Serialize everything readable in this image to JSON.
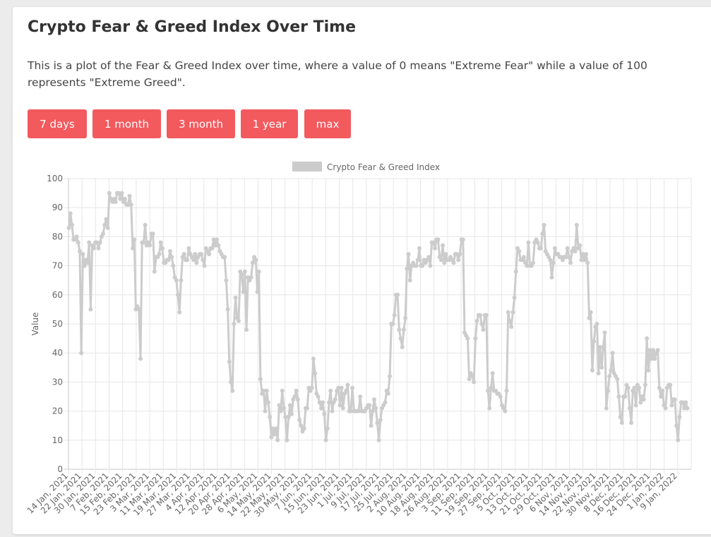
{
  "header": {
    "title": "Crypto Fear & Greed Index Over Time",
    "description": "This is a plot of the Fear & Greed Index over time, where a value of 0 means \"Extreme Fear\" while a value of 100 represents \"Extreme Greed\"."
  },
  "range_buttons": [
    "7 days",
    "1 month",
    "3 month",
    "1 year",
    "max"
  ],
  "colors": {
    "accent": "#f25a5e",
    "series": "#cccccc",
    "grid": "#e6e6e6"
  },
  "chart_data": {
    "type": "line",
    "title": "",
    "legend": {
      "label": "Crypto Fear & Greed Index",
      "position": "top"
    },
    "xlabel": "",
    "ylabel": "Value",
    "ylim": [
      0,
      100
    ],
    "yticks": [
      0,
      10,
      20,
      30,
      40,
      50,
      60,
      70,
      80,
      90,
      100
    ],
    "grid": true,
    "x_tick_labels": [
      "14 Jan, 2021",
      "22 Jan, 2021",
      "30 Jan, 2021",
      "7 Feb, 2021",
      "15 Feb, 2021",
      "23 Feb, 2021",
      "3 Mar, 2021",
      "11 Mar, 2021",
      "19 Mar, 2021",
      "27 Mar, 2021",
      "4 Apr, 2021",
      "12 Apr, 2021",
      "20 Apr, 2021",
      "28 Apr, 2021",
      "6 May, 2021",
      "14 May, 2021",
      "22 May, 2021",
      "30 May, 2021",
      "7 Jun, 2021",
      "15 Jun, 2021",
      "23 Jun, 2021",
      "1 Jul, 2021",
      "9 Jul, 2021",
      "17 Jul, 2021",
      "25 Jul, 2021",
      "2 Aug, 2021",
      "10 Aug, 2021",
      "18 Aug, 2021",
      "26 Aug, 2021",
      "3 Sep, 2021",
      "11 Sep, 2021",
      "19 Sep, 2021",
      "27 Sep, 2021",
      "5 Oct, 2021",
      "13 Oct, 2021",
      "21 Oct, 2021",
      "29 Oct, 2021",
      "6 Nov, 2021",
      "14 Nov, 2021",
      "22 Nov, 2021",
      "30 Nov, 2021",
      "8 Dec, 2021",
      "16 Dec, 2021",
      "24 Dec, 2021",
      "1 Jan, 2022",
      "9 Jan, 2022"
    ],
    "series": [
      {
        "name": "Crypto Fear & Greed Index",
        "values": [
          83,
          88,
          84,
          79,
          79,
          80,
          78,
          75,
          40,
          74,
          70,
          72,
          71,
          78,
          55,
          77,
          76,
          78,
          78,
          76,
          78,
          80,
          81,
          84,
          86,
          83,
          95,
          93,
          92,
          93,
          92,
          95,
          95,
          93,
          95,
          92,
          93,
          91,
          91,
          94,
          91,
          76,
          79,
          55,
          56,
          55,
          38,
          78,
          78,
          84,
          77,
          78,
          77,
          81,
          81,
          68,
          73,
          73,
          74,
          78,
          76,
          71,
          71,
          72,
          72,
          75,
          73,
          70,
          66,
          65,
          60,
          54,
          65,
          73,
          74,
          72,
          72,
          76,
          74,
          73,
          72,
          74,
          71,
          73,
          74,
          74,
          72,
          70,
          76,
          75,
          74,
          76,
          76,
          79,
          77,
          79,
          77,
          75,
          74,
          73,
          73,
          65,
          55,
          37,
          30,
          27,
          50,
          59,
          52,
          51,
          68,
          67,
          61,
          68,
          48,
          66,
          65,
          66,
          71,
          73,
          72,
          61,
          68,
          31,
          26,
          27,
          20,
          27,
          23,
          18,
          11,
          14,
          12,
          14,
          10,
          22,
          20,
          27,
          21,
          18,
          10,
          18,
          22,
          19,
          24,
          25,
          27,
          24,
          17,
          15,
          13,
          14,
          21,
          21,
          28,
          27,
          28,
          38,
          33,
          26,
          25,
          23,
          21,
          23,
          19,
          10,
          14,
          23,
          27,
          20,
          23,
          24,
          27,
          28,
          22,
          28,
          21,
          26,
          27,
          29,
          20,
          20,
          28,
          20,
          20,
          20,
          20,
          25,
          20,
          20,
          20,
          21,
          22,
          22,
          15,
          20,
          24,
          21,
          16,
          10,
          17,
          21,
          22,
          23,
          27,
          26,
          32,
          50,
          50,
          53,
          60,
          60,
          48,
          45,
          42,
          48,
          52,
          69,
          74,
          65,
          70,
          71,
          70,
          70,
          72,
          76,
          70,
          70,
          72,
          71,
          72,
          73,
          70,
          78,
          78,
          76,
          79,
          79,
          73,
          72,
          77,
          71,
          74,
          72,
          72,
          73,
          72,
          71,
          74,
          74,
          72,
          74,
          79,
          79,
          47,
          46,
          45,
          31,
          33,
          32,
          30,
          45,
          51,
          53,
          53,
          50,
          48,
          53,
          53,
          27,
          21,
          28,
          33,
          27,
          27,
          26,
          26,
          25,
          22,
          21,
          20,
          27,
          54,
          51,
          49,
          54,
          59,
          68,
          76,
          75,
          72,
          72,
          73,
          71,
          70,
          78,
          70,
          70,
          71,
          78,
          79,
          78,
          76,
          76,
          81,
          84,
          75,
          74,
          73,
          72,
          66,
          71,
          76,
          74,
          74,
          73,
          73,
          72,
          73,
          73,
          76,
          73,
          71,
          75,
          76,
          75,
          84,
          76,
          77,
          72,
          74,
          72,
          74,
          71,
          52,
          54,
          34,
          44,
          49,
          50,
          33,
          42,
          35,
          42,
          47,
          21,
          27,
          32,
          34,
          40,
          33,
          32,
          31,
          25,
          18,
          16,
          25,
          25,
          29,
          28,
          21,
          16,
          27,
          28,
          22,
          29,
          28,
          23,
          25,
          24,
          29,
          45,
          34,
          41,
          38,
          41,
          38,
          40,
          41,
          28,
          25,
          27,
          22,
          21,
          28,
          29,
          29,
          22,
          24,
          24,
          15,
          10,
          18,
          23,
          23,
          21,
          23,
          21
        ]
      }
    ]
  }
}
